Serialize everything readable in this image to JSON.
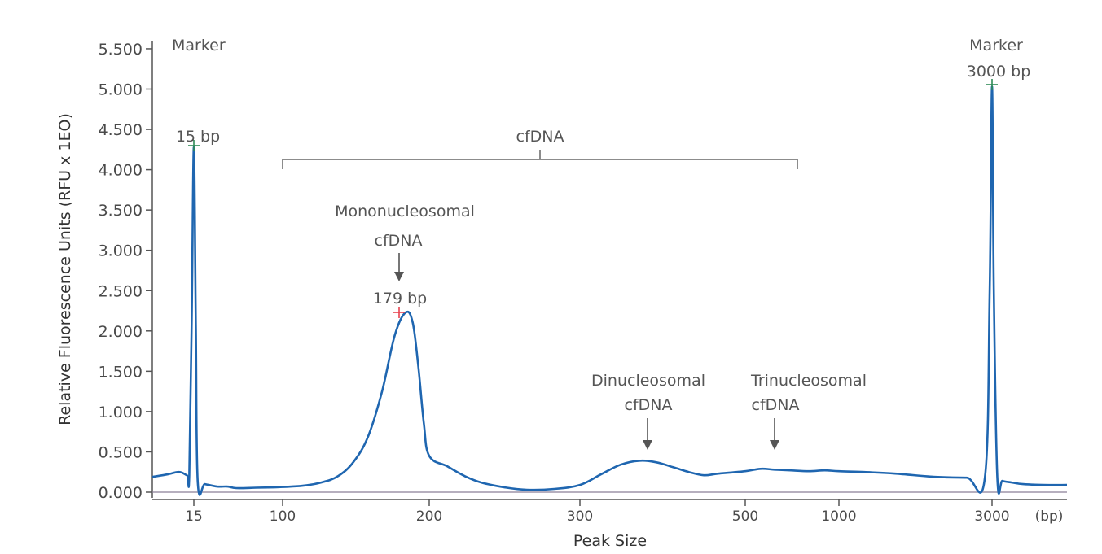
{
  "chart_data": {
    "type": "line",
    "title": "",
    "xlabel": "Peak Size",
    "ylabel": "Relative Fluorescence Units (RFU x 1EO)",
    "x_unit": "(bp)",
    "x_tick_labels": [
      "15",
      "100",
      "200",
      "300",
      "500",
      "1000",
      "3000"
    ],
    "y_tick_labels": [
      "0.000",
      "0.500",
      "1.000",
      "1.500",
      "2.000",
      "2.500",
      "3.000",
      "3.500",
      "4.000",
      "4.500",
      "5.000",
      "5.500"
    ],
    "ylim": [
      0,
      5.5
    ],
    "grid": false,
    "legend": "none",
    "line_color": "#1f66b0",
    "peak_marker_colors": [
      "#2e8b57",
      "#e8424f",
      "#2e8b57"
    ],
    "series": [
      {
        "points": [
          [
            "8",
            0.19
          ],
          [
            "10",
            0.22
          ],
          [
            "12",
            0.25
          ],
          [
            "13.5",
            0.21
          ],
          [
            "14",
            0.21
          ],
          [
            "14.5",
            2.0
          ],
          [
            "15",
            4.28
          ],
          [
            "15.5",
            2.0
          ],
          [
            "16",
            0.12
          ],
          [
            "18",
            0.1
          ],
          [
            "22",
            0.07
          ],
          [
            "26",
            0.07
          ],
          [
            "30",
            0.05
          ],
          [
            "50",
            0.055
          ],
          [
            "80",
            0.06
          ],
          [
            "100",
            0.065
          ],
          [
            "110",
            0.08
          ],
          [
            "120",
            0.12
          ],
          [
            "130",
            0.2
          ],
          [
            "140",
            0.38
          ],
          [
            "150",
            0.7
          ],
          [
            "160",
            1.25
          ],
          [
            "170",
            1.95
          ],
          [
            "179",
            2.23
          ],
          [
            "185",
            2.1
          ],
          [
            "190",
            1.55
          ],
          [
            "195",
            0.85
          ],
          [
            "200",
            0.45
          ],
          [
            "210",
            0.32
          ],
          [
            "220",
            0.2
          ],
          [
            "230",
            0.12
          ],
          [
            "245",
            0.06
          ],
          [
            "260",
            0.03
          ],
          [
            "280",
            0.04
          ],
          [
            "300",
            0.09
          ],
          [
            "320",
            0.22
          ],
          [
            "340",
            0.34
          ],
          [
            "360",
            0.39
          ],
          [
            "380",
            0.37
          ],
          [
            "400",
            0.31
          ],
          [
            "420",
            0.25
          ],
          [
            "440",
            0.21
          ],
          [
            "460",
            0.23
          ],
          [
            "500",
            0.26
          ],
          [
            "560",
            0.29
          ],
          [
            "620",
            0.28
          ],
          [
            "700",
            0.27
          ],
          [
            "800",
            0.26
          ],
          [
            "900",
            0.27
          ],
          [
            "1000",
            0.26
          ],
          [
            "1200",
            0.25
          ],
          [
            "1500",
            0.23
          ],
          [
            "2000",
            0.19
          ],
          [
            "2500",
            0.18
          ],
          [
            "2850",
            0.18
          ],
          [
            "2950",
            2.5
          ],
          [
            "3000",
            5.03
          ],
          [
            "3050",
            2.5
          ],
          [
            "3150",
            0.18
          ],
          [
            "3300",
            0.14
          ],
          [
            "3600",
            0.12
          ],
          [
            "4000",
            0.1
          ],
          [
            "4800",
            0.09
          ],
          [
            "6000",
            0.09
          ]
        ]
      }
    ],
    "annotations": {
      "marker_left": {
        "label": "Marker",
        "peak_label": "15 bp",
        "x": "15",
        "y": 4.28
      },
      "marker_right": {
        "label": "Marker",
        "peak_label": "3000 bp",
        "x": "3000",
        "y": 5.03
      },
      "cfdna_bracket": {
        "label": "cfDNA",
        "from": "100",
        "to": "700"
      },
      "mono": {
        "line1": "Mononucleosomal",
        "line2": "cfDNA",
        "peak_label": "179 bp",
        "x": "179",
        "y": 2.23
      },
      "di": {
        "line1": "Dinucleosomal",
        "line2": "cfDNA",
        "x": "360"
      },
      "tri": {
        "line1": "Trinucleosomal",
        "line2": "cfDNA",
        "x": "600"
      }
    }
  }
}
